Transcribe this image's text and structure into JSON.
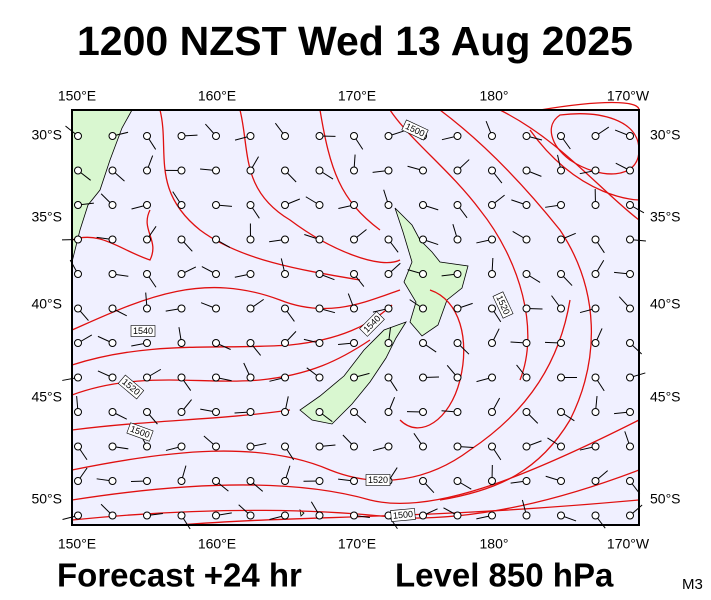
{
  "title": "1200 NZST Wed 13 Aug 2025",
  "map": {
    "lon_labels": [
      "150°E",
      "160°E",
      "170°E",
      "180°",
      "170°W"
    ],
    "lat_labels": [
      "30°S",
      "35°S",
      "40°S",
      "45°S",
      "50°S"
    ],
    "contour_labels": [
      "1500",
      "1520",
      "1540",
      "1540",
      "1520",
      "1500",
      "1520",
      "1500"
    ]
  },
  "footer": {
    "forecast": "Forecast +24 hr",
    "level": "Level 850 hPa",
    "code": "M3"
  }
}
